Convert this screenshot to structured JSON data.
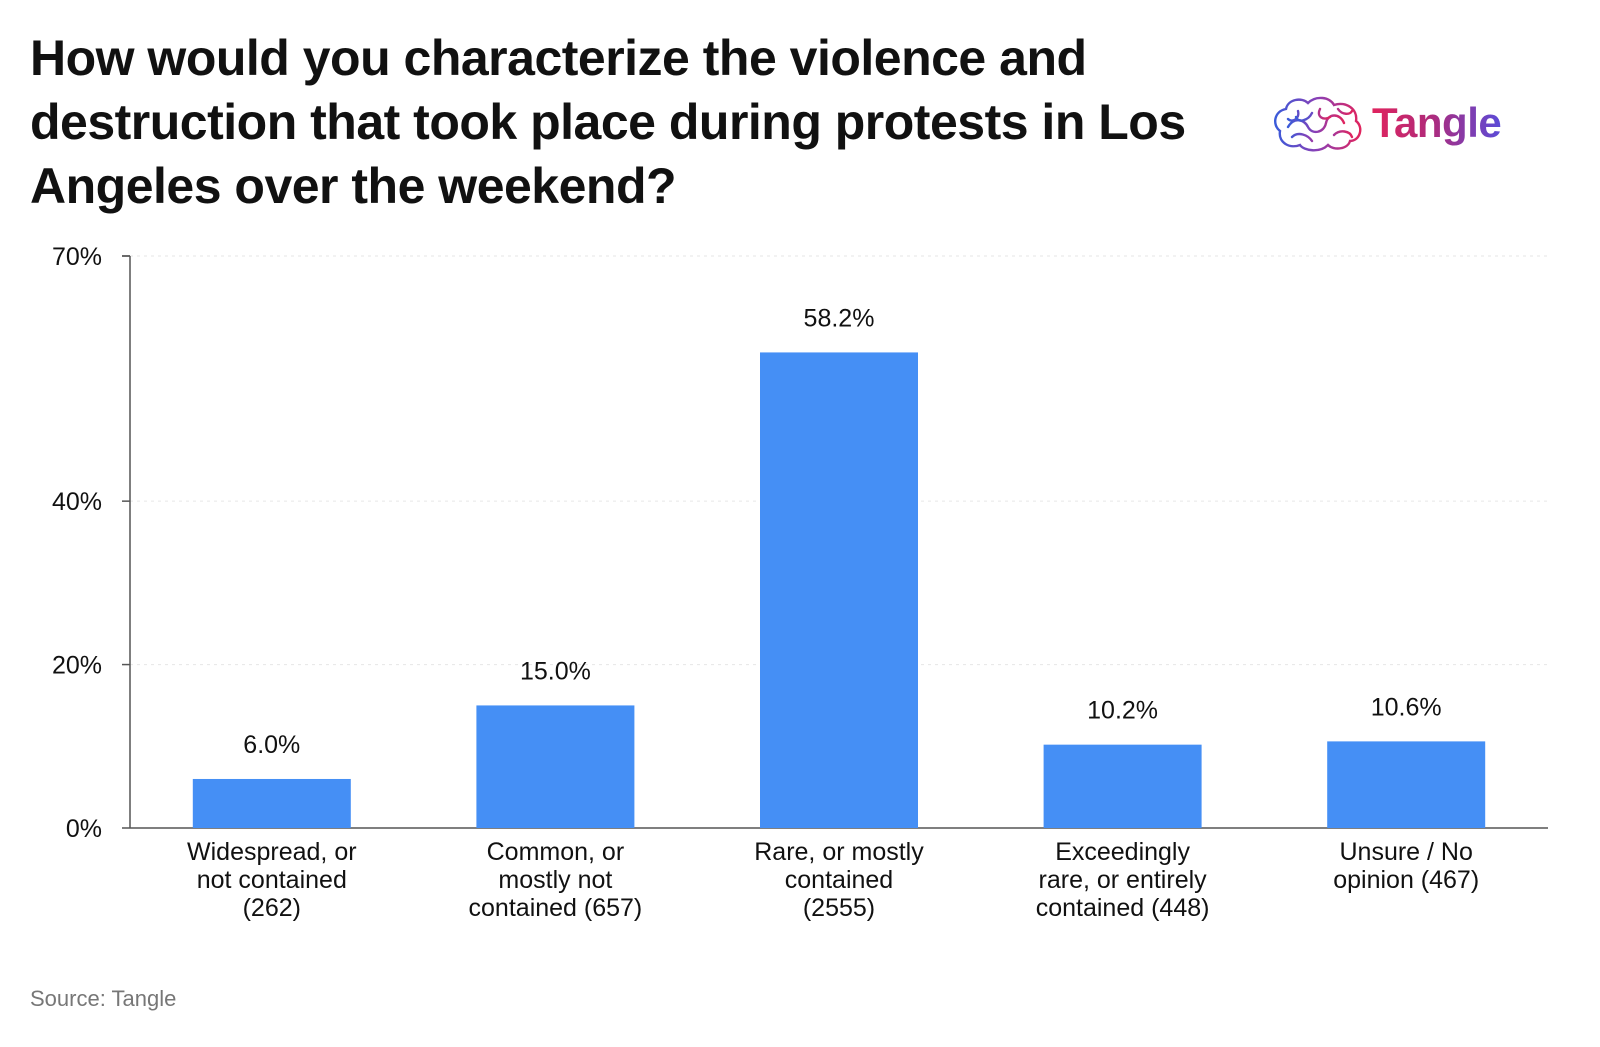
{
  "header": {
    "title": "How would you characterize the violence and destruction that took place during protests in Los Angeles over the weekend?",
    "brand_name": "Tangle",
    "brand_icon": "brain-logo-icon"
  },
  "footer": {
    "source": "Source: Tangle"
  },
  "colors": {
    "bar": "#458ff5",
    "axis": "#555555",
    "grid": "#e6e6e6",
    "text": "#111111",
    "source": "#777777"
  },
  "chart_data": {
    "type": "bar",
    "title": "How would you characterize the violence and destruction that took place during protests in Los Angeles over the weekend?",
    "xlabel": "",
    "ylabel": "",
    "ylim": [
      0,
      70
    ],
    "yticks": [
      0,
      20,
      40,
      70
    ],
    "ytick_labels": [
      "0%",
      "20%",
      "40%",
      "70%"
    ],
    "grid": "horizontal",
    "categories": [
      [
        "Widespread, or",
        "not contained",
        "(262)"
      ],
      [
        "Common, or",
        "mostly not",
        "contained (657)"
      ],
      [
        "Rare, or mostly",
        "contained",
        "(2555)"
      ],
      [
        "Exceedingly",
        "rare, or entirely",
        "contained (448)"
      ],
      [
        "Unsure / No",
        "opinion (467)"
      ]
    ],
    "values": [
      6.0,
      15.0,
      58.2,
      10.2,
      10.6
    ],
    "value_labels": [
      "6.0%",
      "15.0%",
      "58.2%",
      "10.2%",
      "10.6%"
    ]
  }
}
